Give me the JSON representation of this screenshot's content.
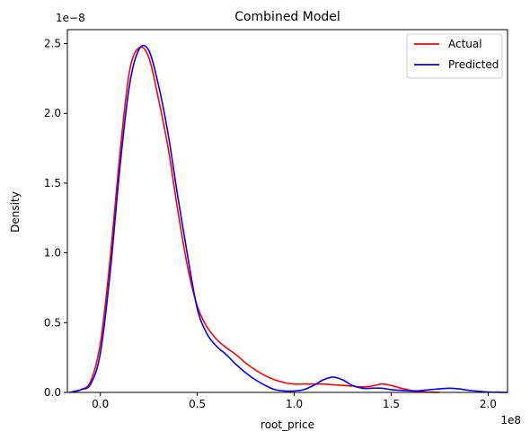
{
  "chart_data": {
    "type": "line",
    "title": "Combined Model",
    "xlabel": "root_price",
    "ylabel": "Density",
    "x_offset_label": "1e8",
    "y_offset_label": "1e−8",
    "xlim": [
      -0.17,
      2.1
    ],
    "ylim": [
      0,
      2.6
    ],
    "x_ticks": [
      0.0,
      0.5,
      1.0,
      1.5,
      2.0
    ],
    "x_tick_labels": [
      "0.0",
      "0.5",
      "1.0",
      "1.5",
      "2.0"
    ],
    "y_ticks": [
      0.0,
      0.5,
      1.0,
      1.5,
      2.0,
      2.5
    ],
    "y_tick_labels": [
      "0.0",
      "0.5",
      "1.0",
      "1.5",
      "2.0",
      "2.5"
    ],
    "grid": false,
    "legend_position": "top-right",
    "series": [
      {
        "name": "Actual",
        "color": "#ff0000",
        "x": [
          -0.15,
          -0.1,
          -0.05,
          0.0,
          0.05,
          0.1,
          0.15,
          0.2,
          0.25,
          0.3,
          0.35,
          0.4,
          0.45,
          0.5,
          0.55,
          0.6,
          0.65,
          0.7,
          0.75,
          0.8,
          0.85,
          0.9,
          0.95,
          1.0,
          1.05,
          1.1,
          1.15,
          1.2,
          1.25,
          1.3,
          1.35,
          1.4,
          1.45,
          1.5,
          1.55,
          1.6,
          1.65,
          1.7,
          1.75
        ],
        "y": [
          0.0,
          0.02,
          0.08,
          0.35,
          0.95,
          1.7,
          2.3,
          2.47,
          2.4,
          2.1,
          1.75,
          1.3,
          0.9,
          0.62,
          0.47,
          0.38,
          0.32,
          0.27,
          0.21,
          0.16,
          0.12,
          0.09,
          0.07,
          0.06,
          0.06,
          0.06,
          0.06,
          0.055,
          0.05,
          0.045,
          0.04,
          0.045,
          0.06,
          0.05,
          0.03,
          0.015,
          0.005,
          0.002,
          0.0
        ]
      },
      {
        "name": "Predicted",
        "color": "#0000ff",
        "x": [
          -0.16,
          -0.1,
          -0.05,
          0.0,
          0.05,
          0.1,
          0.15,
          0.2,
          0.25,
          0.3,
          0.35,
          0.4,
          0.45,
          0.5,
          0.55,
          0.6,
          0.65,
          0.7,
          0.75,
          0.8,
          0.85,
          0.9,
          0.95,
          1.0,
          1.05,
          1.1,
          1.15,
          1.2,
          1.25,
          1.3,
          1.35,
          1.4,
          1.45,
          1.5,
          1.55,
          1.6,
          1.65,
          1.7,
          1.75,
          1.8,
          1.85,
          1.9,
          1.95,
          2.0,
          2.05,
          2.1
        ],
        "y": [
          0.0,
          0.02,
          0.06,
          0.28,
          0.85,
          1.6,
          2.2,
          2.46,
          2.45,
          2.2,
          1.85,
          1.4,
          0.98,
          0.6,
          0.42,
          0.33,
          0.27,
          0.2,
          0.14,
          0.09,
          0.05,
          0.02,
          0.01,
          0.01,
          0.02,
          0.05,
          0.09,
          0.11,
          0.09,
          0.05,
          0.03,
          0.03,
          0.03,
          0.02,
          0.015,
          0.01,
          0.012,
          0.02,
          0.025,
          0.03,
          0.025,
          0.015,
          0.008,
          0.003,
          0.001,
          0.0
        ]
      }
    ]
  }
}
